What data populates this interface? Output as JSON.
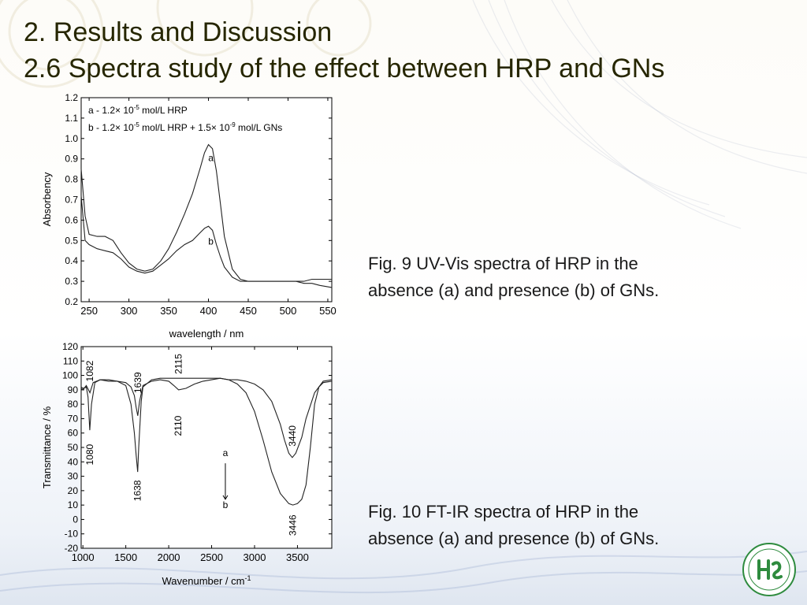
{
  "slide": {
    "title_line1": "2. Results and Discussion",
    "title_line2": "2.6 Spectra study of the effect between HRP and GNs",
    "caption1_line1": "Fig. 9  UV-Vis spectra of HRP in the",
    "caption1_line2": "absence (a) and presence (b) of GNs.",
    "caption2_line1": "Fig. 10  FT-IR spectra of HRP in the",
    "caption2_line2": "absence (a) and presence (b) of GNs."
  },
  "chart_data": [
    {
      "type": "line",
      "xlabel": "wavelength / nm",
      "ylabel": "Absorbency",
      "xlim": [
        240,
        555
      ],
      "ylim": [
        0.2,
        1.2
      ],
      "xticks": [
        250,
        300,
        350,
        400,
        450,
        500,
        550
      ],
      "yticks": [
        0.2,
        0.3,
        0.4,
        0.5,
        0.6,
        0.7,
        0.8,
        0.9,
        1.0,
        1.1,
        1.2
      ],
      "legend": [
        {
          "letter": "a",
          "text_pre": "a - 1.2× 10",
          "sup1": "-5",
          "text_post": " mol/L HRP",
          "sup2": "",
          "text_end": ""
        },
        {
          "letter": "b",
          "text_pre": "b - 1.2× 10",
          "sup1": "-5",
          "text_post": " mol/L HRP + 1.5× 10",
          "sup2": "-9",
          "text_end": " mol/L GNs"
        }
      ],
      "series": [
        {
          "name": "a",
          "x": [
            240,
            245,
            250,
            260,
            270,
            280,
            290,
            300,
            310,
            320,
            330,
            340,
            350,
            360,
            370,
            380,
            390,
            395,
            400,
            405,
            410,
            415,
            420,
            430,
            440,
            450,
            460,
            470,
            480,
            490,
            500,
            510,
            520,
            530,
            540,
            555
          ],
          "y": [
            0.85,
            0.62,
            0.53,
            0.52,
            0.52,
            0.5,
            0.44,
            0.39,
            0.36,
            0.35,
            0.36,
            0.4,
            0.46,
            0.54,
            0.63,
            0.73,
            0.86,
            0.93,
            0.97,
            0.95,
            0.84,
            0.68,
            0.52,
            0.36,
            0.31,
            0.3,
            0.3,
            0.3,
            0.3,
            0.3,
            0.3,
            0.3,
            0.29,
            0.29,
            0.28,
            0.27
          ]
        },
        {
          "name": "b",
          "x": [
            240,
            245,
            250,
            260,
            270,
            280,
            290,
            300,
            310,
            320,
            330,
            340,
            350,
            360,
            370,
            380,
            390,
            395,
            400,
            405,
            410,
            415,
            420,
            430,
            440,
            450,
            460,
            470,
            480,
            490,
            500,
            510,
            520,
            530,
            540,
            555
          ],
          "y": [
            0.72,
            0.5,
            0.48,
            0.46,
            0.45,
            0.44,
            0.41,
            0.37,
            0.35,
            0.34,
            0.35,
            0.38,
            0.41,
            0.45,
            0.48,
            0.5,
            0.54,
            0.56,
            0.57,
            0.55,
            0.48,
            0.42,
            0.37,
            0.32,
            0.3,
            0.3,
            0.3,
            0.3,
            0.3,
            0.3,
            0.3,
            0.3,
            0.3,
            0.31,
            0.31,
            0.31
          ]
        }
      ],
      "annotations": [
        {
          "text": "a",
          "x": 403,
          "y": 0.89
        },
        {
          "text": "b",
          "x": 403,
          "y": 0.48
        }
      ]
    },
    {
      "type": "line",
      "xlabel": "Wavenumber / cm",
      "xlabel_sup": "-1",
      "ylabel": "Transmittance / %",
      "xlim": [
        980,
        3900
      ],
      "ylim": [
        -20,
        120
      ],
      "xticks": [
        1000,
        1500,
        2000,
        2500,
        3000,
        3500
      ],
      "yticks": [
        -20,
        -10,
        0,
        10,
        20,
        30,
        40,
        50,
        60,
        70,
        80,
        90,
        100,
        110,
        120
      ],
      "series": [
        {
          "name": "a",
          "x": [
            980,
            1000,
            1040,
            1082,
            1120,
            1200,
            1300,
            1400,
            1500,
            1560,
            1600,
            1620,
            1639,
            1660,
            1700,
            1800,
            1900,
            2000,
            2060,
            2115,
            2200,
            2300,
            2400,
            2500,
            2600,
            2700,
            2800,
            2900,
            3000,
            3100,
            3200,
            3300,
            3350,
            3400,
            3440,
            3480,
            3550,
            3600,
            3700,
            3800,
            3900
          ],
          "y": [
            91,
            90,
            93,
            88,
            95,
            97,
            96,
            96,
            95,
            92,
            86,
            78,
            72,
            82,
            93,
            96,
            97,
            96,
            93,
            90,
            91,
            94,
            96,
            97,
            98,
            97,
            97,
            96,
            94,
            90,
            82,
            66,
            55,
            46,
            43,
            46,
            57,
            70,
            88,
            96,
            97
          ]
        },
        {
          "name": "b",
          "x": [
            980,
            1000,
            1040,
            1060,
            1080,
            1100,
            1140,
            1200,
            1300,
            1400,
            1500,
            1560,
            1600,
            1620,
            1638,
            1650,
            1680,
            1700,
            1800,
            1900,
            2000,
            2100,
            2200,
            2300,
            2400,
            2500,
            2600,
            2700,
            2800,
            2900,
            3000,
            3100,
            3200,
            3300,
            3400,
            3446,
            3500,
            3550,
            3600,
            3650,
            3700,
            3750,
            3800,
            3900
          ],
          "y": [
            92,
            91,
            92,
            85,
            62,
            80,
            95,
            97,
            97,
            96,
            93,
            80,
            60,
            45,
            33,
            50,
            82,
            92,
            97,
            98,
            98,
            98,
            98,
            98,
            98,
            98,
            98,
            97,
            94,
            88,
            75,
            55,
            33,
            18,
            11,
            10,
            11,
            14,
            24,
            50,
            80,
            92,
            95,
            96
          ]
        }
      ],
      "annotations": [
        {
          "text": "1082",
          "x": 1082,
          "y": 103,
          "rotate": true
        },
        {
          "text": "1080",
          "x": 1080,
          "y": 45,
          "rotate": true
        },
        {
          "text": "1639",
          "x": 1639,
          "y": 95,
          "rotate": true
        },
        {
          "text": "1638",
          "x": 1638,
          "y": 20,
          "rotate": true
        },
        {
          "text": "2115",
          "x": 2115,
          "y": 108,
          "rotate": true
        },
        {
          "text": "2110",
          "x": 2110,
          "y": 65,
          "rotate": true
        },
        {
          "text": "3440",
          "x": 3440,
          "y": 58,
          "rotate": true
        },
        {
          "text": "3446",
          "x": 3446,
          "y": -4,
          "rotate": true
        },
        {
          "text": "a",
          "x": 2660,
          "y": 44
        },
        {
          "text": "b",
          "x": 2660,
          "y": 8
        }
      ]
    }
  ]
}
